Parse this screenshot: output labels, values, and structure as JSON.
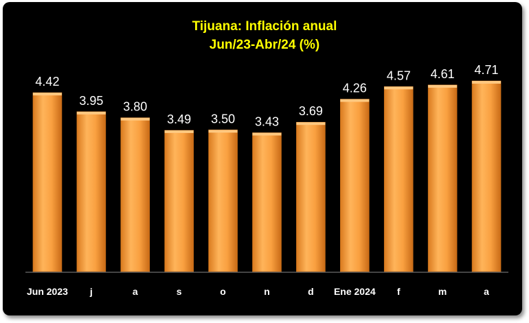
{
  "chart_data": {
    "type": "bar",
    "title": "Tijuana: Inflación anual",
    "subtitle": "Jun/23-Abr/24 (%)",
    "categories": [
      "Jun 2023",
      "j",
      "a",
      "s",
      "o",
      "n",
      "d",
      "Ene 2024",
      "f",
      "m",
      "a"
    ],
    "values": [
      4.42,
      3.95,
      3.8,
      3.49,
      3.5,
      3.43,
      3.69,
      4.26,
      4.57,
      4.61,
      4.71
    ],
    "labels": [
      "4.42",
      "3.95",
      "3.80",
      "3.49",
      "3.50",
      "3.43",
      "3.69",
      "4.26",
      "4.57",
      "4.61",
      "4.71"
    ],
    "ylim": [
      0,
      4.71
    ],
    "xlabel": "",
    "ylabel": "",
    "grid": false,
    "legend": "none",
    "colors": {
      "bar": "#f7a03c",
      "bar_light": "#ffc880",
      "bar_dark": "#c86e18",
      "title": "#ffff00",
      "text": "#ffffff",
      "background": "#000000"
    }
  }
}
